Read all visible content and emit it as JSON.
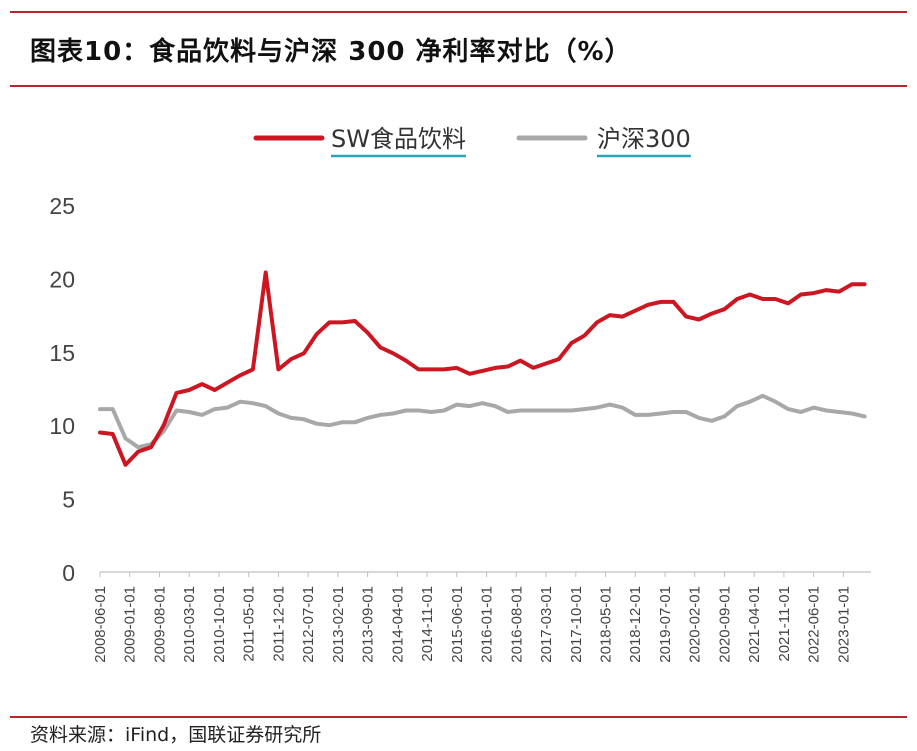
{
  "title": "图表10：食品饮料与沪深 300 净利率对比（%）",
  "source": "资料来源：iFind，国联证券研究所",
  "colors": {
    "accent": "#b8252c",
    "series1": "#cc1722",
    "series2": "#a8a8a8",
    "legend_underline": "#2aa6b8"
  },
  "chart_data": {
    "type": "line",
    "ylim": [
      0,
      25
    ],
    "yticks": [
      0,
      5,
      10,
      15,
      20,
      25
    ],
    "grid": false,
    "legend_position": "top-center",
    "xticks": [
      "2008-06-01",
      "2009-01-01",
      "2009-08-01",
      "2010-03-01",
      "2010-10-01",
      "2011-05-01",
      "2011-12-01",
      "2012-07-01",
      "2013-02-01",
      "2013-09-01",
      "2014-04-01",
      "2014-11-01",
      "2015-06-01",
      "2016-01-01",
      "2016-08-01",
      "2017-03-01",
      "2017-10-01",
      "2018-05-01",
      "2018-12-01",
      "2019-07-01",
      "2020-02-01",
      "2020-09-01",
      "2021-04-01",
      "2021-11-01",
      "2022-06-01",
      "2023-01-01"
    ],
    "x": [
      "2008-06",
      "2008-09",
      "2008-12",
      "2009-03",
      "2009-06",
      "2009-09",
      "2009-12",
      "2010-03",
      "2010-06",
      "2010-09",
      "2010-12",
      "2011-03",
      "2011-06",
      "2011-09",
      "2011-12",
      "2012-03",
      "2012-06",
      "2012-09",
      "2012-12",
      "2013-03",
      "2013-06",
      "2013-09",
      "2013-12",
      "2014-03",
      "2014-06",
      "2014-09",
      "2014-12",
      "2015-03",
      "2015-06",
      "2015-09",
      "2015-12",
      "2016-03",
      "2016-06",
      "2016-09",
      "2016-12",
      "2017-03",
      "2017-06",
      "2017-09",
      "2017-12",
      "2018-03",
      "2018-06",
      "2018-09",
      "2018-12",
      "2019-03",
      "2019-06",
      "2019-09",
      "2019-12",
      "2020-03",
      "2020-06",
      "2020-09",
      "2020-12",
      "2021-03",
      "2021-06",
      "2021-09",
      "2021-12",
      "2022-03",
      "2022-06",
      "2022-09",
      "2022-12",
      "2023-03",
      "2023-06"
    ],
    "series": [
      {
        "name": "SW食品饮料",
        "color": "#cc1722",
        "values": [
          9.5,
          9.4,
          7.3,
          8.2,
          8.5,
          10.0,
          12.2,
          12.4,
          12.8,
          12.4,
          12.9,
          13.4,
          13.8,
          20.4,
          13.8,
          14.5,
          14.9,
          16.2,
          17.0,
          17.0,
          17.1,
          16.3,
          15.3,
          14.9,
          14.4,
          13.8,
          13.8,
          13.8,
          13.9,
          13.5,
          13.7,
          13.9,
          14.0,
          14.4,
          13.9,
          14.2,
          14.5,
          15.6,
          16.1,
          17.0,
          17.5,
          17.4,
          17.8,
          18.2,
          18.4,
          18.4,
          17.4,
          17.2,
          17.6,
          17.9,
          18.6,
          18.9,
          18.6,
          18.6,
          18.3,
          18.9,
          19.0,
          19.2,
          19.1,
          19.6,
          19.6
        ]
      },
      {
        "name": "沪深300",
        "color": "#a8a8a8",
        "values": [
          11.1,
          11.1,
          9.1,
          8.5,
          8.7,
          9.6,
          11.0,
          10.9,
          10.7,
          11.1,
          11.2,
          11.6,
          11.5,
          11.3,
          10.8,
          10.5,
          10.4,
          10.1,
          10.0,
          10.2,
          10.2,
          10.5,
          10.7,
          10.8,
          11.0,
          11.0,
          10.9,
          11.0,
          11.4,
          11.3,
          11.5,
          11.3,
          10.9,
          11.0,
          11.0,
          11.0,
          11.0,
          11.0,
          11.1,
          11.2,
          11.4,
          11.2,
          10.7,
          10.7,
          10.8,
          10.9,
          10.9,
          10.5,
          10.3,
          10.6,
          11.3,
          11.6,
          12.0,
          11.6,
          11.1,
          10.9,
          11.2,
          11.0,
          10.9,
          10.8,
          10.6
        ]
      }
    ]
  }
}
